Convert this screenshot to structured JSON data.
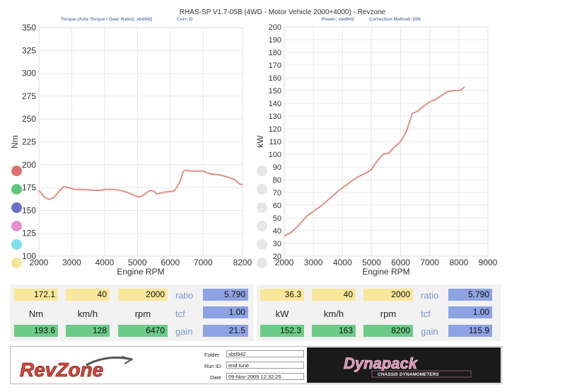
{
  "header": {
    "title": "RHAS-SP V1.7-05B   (4WD - Motor Vehicle 2000+4000) - Revzone",
    "left_sub": "Torque (Axle Torque / Gear Ratio): xbd942",
    "left_sub2": "Corr: D",
    "right_sub": "Power: xbd942",
    "right_sub2": "Correction Method: DIN"
  },
  "chart_data": [
    {
      "type": "line",
      "xlabel": "Engine RPM",
      "ylabel": "Nm",
      "xlim": [
        2000,
        8200
      ],
      "ylim": [
        100,
        350
      ],
      "xticks": [
        2000,
        3000,
        4000,
        5000,
        6000,
        7000,
        8200
      ],
      "yticks": [
        100,
        125,
        150,
        175,
        200,
        225,
        250,
        275,
        300,
        325,
        350
      ],
      "grid": true,
      "series": [
        {
          "color": "#e08e86",
          "x": [
            2000,
            2150,
            2300,
            2450,
            2600,
            2750,
            2900,
            3100,
            3400,
            3700,
            3900,
            4000,
            4300,
            4600,
            4800,
            5000,
            5100,
            5200,
            5300,
            5400,
            5500,
            5600,
            5800,
            6100,
            6200,
            6300,
            6400,
            6500,
            6600,
            6800,
            7000,
            7200,
            7500,
            7800,
            8000,
            8100,
            8200
          ],
          "y": [
            172,
            165,
            162,
            164,
            170,
            176,
            175,
            173,
            173,
            172,
            172,
            173,
            173,
            171,
            168,
            165,
            165,
            167,
            170,
            172,
            171,
            168,
            170,
            171,
            175,
            182,
            193,
            194,
            193,
            193,
            193,
            190,
            189,
            186,
            183,
            179,
            178
          ]
        }
      ]
    },
    {
      "type": "line",
      "xlabel": "Engine RPM",
      "ylabel": "kW",
      "xlim": [
        2000,
        9000
      ],
      "ylim": [
        20,
        200
      ],
      "xticks": [
        2000,
        3000,
        4000,
        5000,
        6000,
        7000,
        8000,
        9000
      ],
      "yticks": [
        20,
        30,
        40,
        50,
        60,
        70,
        80,
        90,
        100,
        110,
        120,
        130,
        140,
        150,
        160,
        170,
        180,
        190,
        200
      ],
      "grid": true,
      "series": [
        {
          "color": "#e08e86",
          "x": [
            2000,
            2200,
            2400,
            2600,
            2800,
            3000,
            3300,
            3600,
            3900,
            4200,
            4500,
            4800,
            5000,
            5200,
            5400,
            5600,
            5800,
            6000,
            6200,
            6400,
            6600,
            6800,
            7000,
            7200,
            7400,
            7600,
            7800,
            8000,
            8100,
            8200
          ],
          "y": [
            36,
            38,
            42,
            47,
            52,
            55,
            60,
            66,
            72,
            77,
            82,
            85,
            88,
            95,
            100,
            101,
            106,
            110,
            118,
            132,
            134,
            138,
            141,
            143,
            146,
            149,
            150,
            150,
            151,
            153
          ]
        }
      ]
    }
  ],
  "left_readout": {
    "row1": [
      "172.1",
      "40",
      "2000"
    ],
    "units": [
      "Nm",
      "km/h",
      "rpm"
    ],
    "row3": [
      "193.6",
      "128",
      "6470"
    ],
    "ratio_label": "ratio",
    "ratio": "5.790",
    "tcf_label": "tcf",
    "tcf": "1.00",
    "gain_label": "gain",
    "gain": "21.5"
  },
  "right_readout": {
    "row1": [
      "36.3",
      "40",
      "2000"
    ],
    "units": [
      "kW",
      "km/h",
      "rpm"
    ],
    "row3": [
      "152.3",
      "163",
      "8200"
    ],
    "ratio_label": "ratio",
    "ratio": "5.790",
    "tcf_label": "tcf",
    "tcf": "1.00",
    "gain_label": "gain",
    "gain": "115.9"
  },
  "footer": {
    "logo_left": "RevZone",
    "folder_label": "Folder",
    "folder": "xbd942",
    "runid_label": "Run ID",
    "runid": "end tune",
    "date_label": "Date",
    "date": "09-Nov-2009  12:32:25",
    "logo_right": "Dynapack",
    "logo_right_sub": "CHASSIS DYNAMOMETERS"
  },
  "colors": {
    "curve": "#e08e86",
    "yellow": "#f9e79a",
    "green": "#6ccb87",
    "blue": "#8ea3e4",
    "dots": [
      "#e06f6f",
      "#5ec67a",
      "#6a6fc8",
      "#e58fd0",
      "#7fe0ec",
      "#f6e59a"
    ]
  }
}
